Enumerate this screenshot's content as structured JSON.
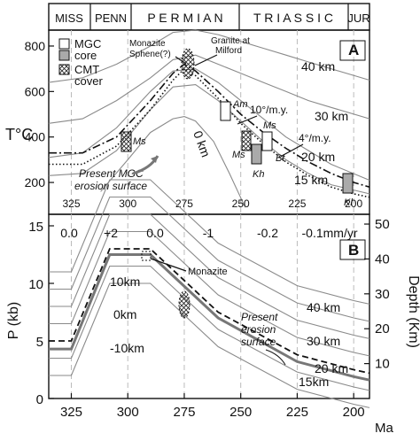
{
  "periods": [
    "MISS",
    "PENN",
    "P E R M I A N",
    "T R I A S S I C",
    "JUR"
  ],
  "panel_a": {
    "letter": "A",
    "ylabel": "T°C",
    "y_ticks": [
      "800",
      "600",
      "400",
      "200"
    ],
    "x_ticks": [
      "325",
      "300",
      "275",
      "250",
      "225",
      "200"
    ],
    "depth_labels": [
      "40 km",
      "30 km",
      "20 km",
      "15 km",
      "0 km"
    ],
    "rate_labels": [
      "10°/m.y.",
      "4°/m.y."
    ],
    "annotations": {
      "monazite": "Monazite",
      "sphene": "Sphene(?)",
      "granite": "Granite at Milford",
      "erosion": "Present MGC erosion surface",
      "am": "Am",
      "ms": "Ms",
      "kh": "Kh",
      "kl": "Kl",
      "bt": "Bt"
    },
    "legend": [
      "MGC core",
      "CMT cover"
    ]
  },
  "panel_b": {
    "letter": "B",
    "ylabel": "P (kb)",
    "ylabel_right": "Depth (Km)",
    "y_ticks": [
      "15",
      "10",
      "5",
      "0"
    ],
    "y_ticks_right": [
      "50",
      "40",
      "30",
      "20",
      "10"
    ],
    "x_ticks": [
      "325",
      "300",
      "275",
      "250",
      "225",
      "200"
    ],
    "x_unit": "Ma",
    "rates": [
      "0.0",
      "+2",
      "0.0",
      "-1",
      "-0.2",
      "-0.1mm/yr"
    ],
    "depth_labels": [
      "10km",
      "0km",
      "-10km",
      "40 km",
      "30 km",
      "20 km",
      "15km"
    ],
    "annotations": {
      "monazite": "Monazite",
      "erosion": "Present erosion surface"
    }
  },
  "chart_data": [
    {
      "type": "line",
      "panel": "A",
      "xlabel": "",
      "ylabel": "T°C",
      "xlim": [
        335,
        193
      ],
      "ylim": [
        60,
        870
      ],
      "series": [
        {
          "name": "40 km",
          "x": [
            335,
            320,
            305,
            290,
            280,
            270,
            260,
            250,
            240,
            230,
            220,
            210,
            193
          ],
          "y": [
            640,
            660,
            720,
            800,
            860,
            870,
            850,
            820,
            790,
            760,
            730,
            700,
            650
          ]
        },
        {
          "name": "30 km",
          "x": [
            335,
            320,
            305,
            290,
            280,
            270,
            260,
            250,
            240,
            230,
            220,
            210,
            193
          ],
          "y": [
            460,
            480,
            560,
            660,
            740,
            760,
            720,
            680,
            640,
            600,
            560,
            530,
            480
          ]
        },
        {
          "name": "20 km",
          "x": [
            335,
            320,
            305,
            290,
            280,
            270,
            260,
            250,
            240,
            230,
            220,
            210,
            193
          ],
          "y": [
            310,
            330,
            440,
            600,
            690,
            700,
            640,
            560,
            480,
            400,
            340,
            280,
            210
          ]
        },
        {
          "name": "15 km",
          "x": [
            335,
            320,
            305,
            290,
            280,
            270,
            260,
            250,
            240,
            230,
            220,
            210,
            193
          ],
          "y": [
            230,
            240,
            340,
            520,
            620,
            630,
            560,
            470,
            380,
            300,
            240,
            190,
            150
          ]
        },
        {
          "name": "0 km",
          "x": [
            312,
            300,
            290,
            280,
            275,
            270,
            262,
            255,
            248
          ],
          "y": [
            160,
            300,
            420,
            480,
            490,
            470,
            380,
            240,
            90
          ]
        },
        {
          "name": "MGC core path",
          "x": [
            335,
            320,
            305,
            290,
            280,
            275,
            270,
            260,
            250,
            240,
            230,
            220,
            210,
            200,
            193
          ],
          "y": [
            330,
            330,
            400,
            560,
            680,
            720,
            690,
            600,
            500,
            420,
            350,
            290,
            240,
            200,
            180
          ]
        },
        {
          "name": "CMT cover path",
          "x": [
            335,
            320,
            305,
            290,
            280,
            275,
            270,
            260,
            250,
            240,
            230,
            220,
            210,
            200,
            193
          ],
          "y": [
            280,
            280,
            360,
            520,
            650,
            700,
            670,
            570,
            460,
            370,
            290,
            230,
            180,
            150,
            135
          ]
        }
      ]
    },
    {
      "type": "line",
      "panel": "B",
      "xlabel": "Ma",
      "ylabel": "P (kb)",
      "xlim": [
        335,
        193
      ],
      "ylim": [
        0,
        16
      ],
      "series": [
        {
          "name": "MGC core path",
          "x": [
            335,
            325,
            308,
            290,
            260,
            225,
            200,
            193
          ],
          "y": [
            5,
            5,
            13,
            13,
            7.5,
            3.8,
            2.5,
            2.2
          ]
        },
        {
          "name": "15km",
          "x": [
            335,
            325,
            308,
            290,
            260,
            225,
            200,
            193
          ],
          "y": [
            4.3,
            4.3,
            12.5,
            12.5,
            7,
            3.2,
            1.9,
            1.6
          ]
        }
      ]
    }
  ]
}
